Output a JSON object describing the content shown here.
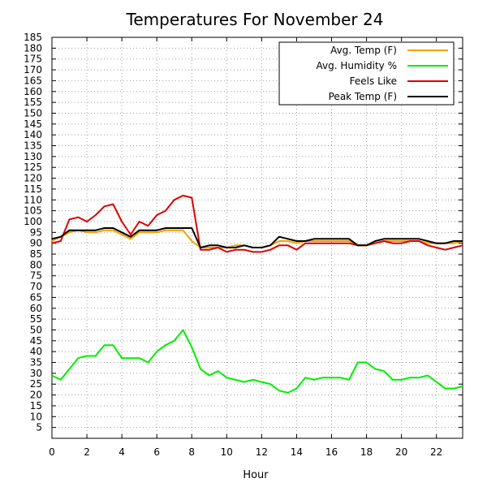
{
  "chart_data": {
    "type": "line",
    "title": "Temperatures For November 24",
    "xlabel": "Hour",
    "ylabel": "",
    "xlim": [
      0,
      23.5
    ],
    "ylim": [
      0,
      185
    ],
    "xticks": [
      0,
      2,
      4,
      6,
      8,
      10,
      12,
      14,
      16,
      18,
      20,
      22
    ],
    "yticks": [
      5,
      10,
      15,
      20,
      25,
      30,
      35,
      40,
      45,
      50,
      55,
      60,
      65,
      70,
      75,
      80,
      85,
      90,
      95,
      100,
      105,
      110,
      115,
      120,
      125,
      130,
      135,
      140,
      145,
      150,
      155,
      160,
      165,
      170,
      175,
      180,
      185
    ],
    "grid": true,
    "legend_position": "top-right",
    "x": [
      0,
      0.5,
      1,
      1.5,
      2,
      2.5,
      3,
      3.5,
      4,
      4.5,
      5,
      5.5,
      6,
      6.5,
      7,
      7.5,
      8,
      8.5,
      9,
      9.5,
      10,
      10.5,
      11,
      11.5,
      12,
      12.5,
      13,
      13.5,
      14,
      14.5,
      15,
      15.5,
      16,
      16.5,
      17,
      17.5,
      18,
      18.5,
      19,
      19.5,
      20,
      20.5,
      21,
      21.5,
      22,
      22.5,
      23,
      23.5
    ],
    "series": [
      {
        "name": "Avg. Temp (F)",
        "color": "#f0a000",
        "values": [
          91,
          93,
          95,
          96,
          95,
          95,
          96,
          96,
          94,
          92,
          95,
          95,
          95,
          96,
          96,
          96,
          91,
          88,
          88,
          88,
          88,
          89,
          89,
          88,
          88,
          89,
          91,
          91,
          90,
          91,
          91,
          91,
          91,
          91,
          91,
          89,
          89,
          90,
          91,
          91,
          91,
          91,
          91,
          90,
          90,
          90,
          90,
          91
        ]
      },
      {
        "name": "Avg. Humidity %",
        "color": "#00ee00",
        "values": [
          29,
          27,
          32,
          37,
          38,
          38,
          43,
          43,
          37,
          37,
          37,
          35,
          40,
          43,
          45,
          50,
          42,
          32,
          29,
          31,
          28,
          27,
          26,
          27,
          26,
          25,
          22,
          21,
          23,
          28,
          27,
          28,
          28,
          28,
          27,
          35,
          35,
          32,
          31,
          27,
          27,
          28,
          28,
          29,
          26,
          23,
          23,
          24
        ]
      },
      {
        "name": "Feels Like",
        "color": "#dd0000",
        "values": [
          90,
          91,
          101,
          102,
          100,
          103,
          107,
          108,
          100,
          94,
          100,
          98,
          103,
          105,
          110,
          112,
          111,
          87,
          87,
          88,
          86,
          87,
          87,
          86,
          86,
          87,
          89,
          89,
          87,
          90,
          90,
          90,
          90,
          90,
          90,
          89,
          89,
          90,
          91,
          90,
          90,
          91,
          91,
          89,
          88,
          87,
          88,
          89
        ]
      },
      {
        "name": "Peak Temp (F)",
        "color": "#000000",
        "values": [
          92,
          93,
          96,
          96,
          96,
          96,
          97,
          97,
          95,
          93,
          96,
          96,
          96,
          97,
          97,
          97,
          97,
          88,
          89,
          89,
          88,
          88,
          89,
          88,
          88,
          89,
          93,
          92,
          91,
          91,
          92,
          92,
          92,
          92,
          92,
          89,
          89,
          91,
          92,
          92,
          92,
          92,
          92,
          91,
          90,
          90,
          91,
          91
        ]
      }
    ]
  }
}
